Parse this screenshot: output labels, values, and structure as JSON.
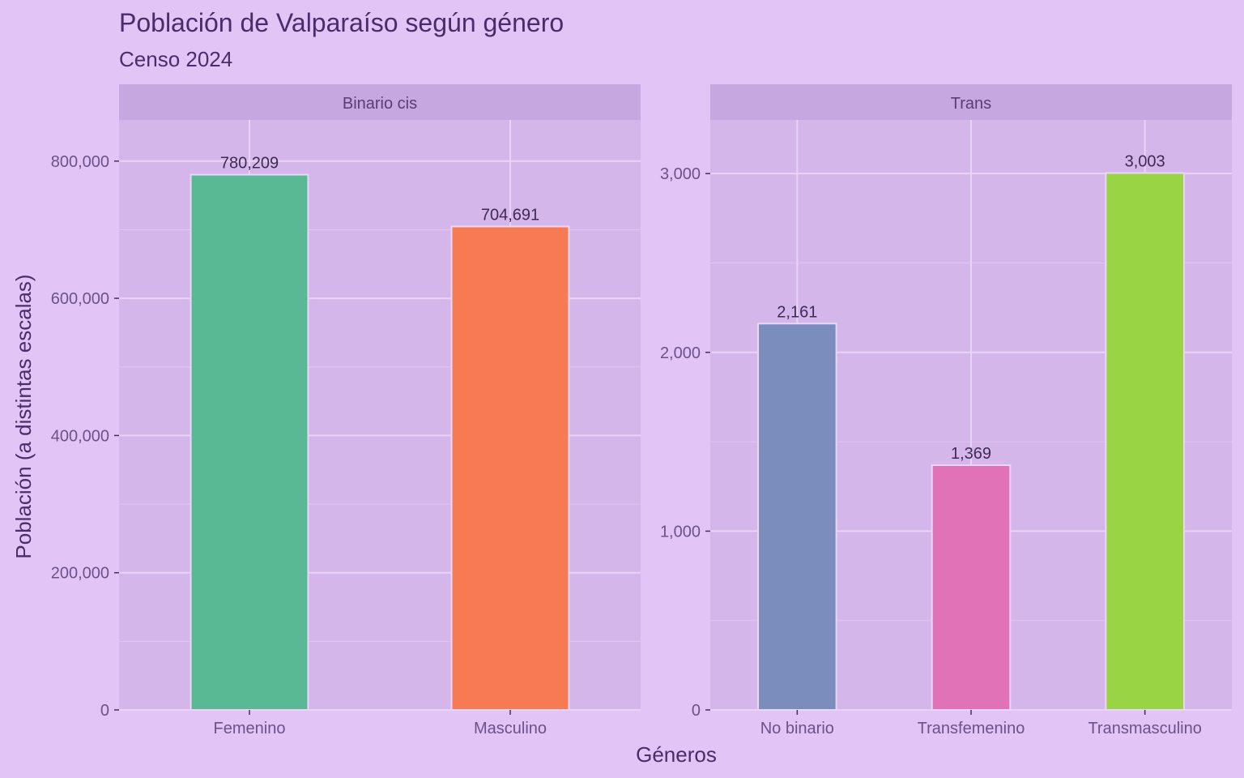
{
  "title": "Población de Valparaíso según género",
  "subtitle": "Censo 2024",
  "xlabel": "Géneros",
  "ylabel": "Población (a distintas escalas)",
  "colors": {
    "background": "#E2C4F7",
    "panel": "#D5B6EA",
    "strip": "#C7A7DF",
    "grid": "#E9D3F9",
    "text": "#4A2C6B"
  },
  "chart_data": {
    "type": "bar",
    "xlabel": "Géneros",
    "ylabel": "Población (a distintas escalas)",
    "grid": true,
    "legend": "none",
    "facets": [
      {
        "name": "Binario cis",
        "categories": [
          "Femenino",
          "Masculino"
        ],
        "values": [
          780209,
          704691
        ],
        "value_labels": [
          "780,209",
          "704,691"
        ],
        "colors": [
          "#58B994",
          "#F77A52"
        ],
        "ylim": [
          0,
          860000
        ],
        "y_ticks": [
          0,
          200000,
          400000,
          600000,
          800000
        ],
        "y_tick_labels": [
          "0",
          "200,000",
          "400,000",
          "600,000",
          "800,000"
        ]
      },
      {
        "name": "Trans",
        "categories": [
          "No binario",
          "Transfemenino",
          "Transmasculino"
        ],
        "values": [
          2161,
          1369,
          3003
        ],
        "value_labels": [
          "2,161",
          "1,369",
          "3,003"
        ],
        "colors": [
          "#7B8DBC",
          "#E172B7",
          "#98D444"
        ],
        "ylim": [
          0,
          3300
        ],
        "y_ticks": [
          0,
          1000,
          2000,
          3000
        ],
        "y_tick_labels": [
          "0",
          "1,000",
          "2,000",
          "3,000"
        ]
      }
    ]
  }
}
